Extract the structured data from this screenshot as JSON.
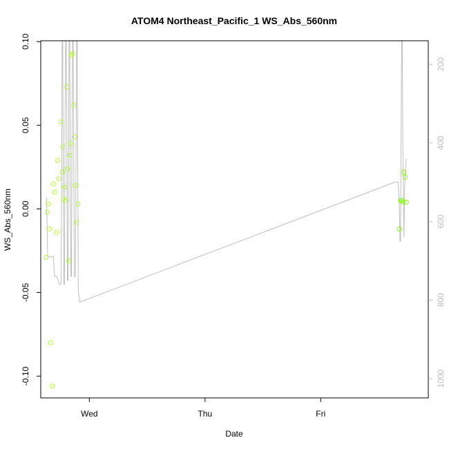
{
  "chart_data": {
    "type": "scatter",
    "title": "ATOM4 Northeast_Pacific_1 WS_Abs_560nm",
    "xlabel": "Date",
    "ylabel": "WS_Abs_560nm",
    "x_ticks": [
      {
        "label": "Wed",
        "t": 0.0
      },
      {
        "label": "Thu",
        "t": 1.0
      },
      {
        "label": "Fri",
        "t": 2.0
      }
    ],
    "xlim": [
      -0.42,
      2.93
    ],
    "ylim": [
      -0.113,
      0.1005
    ],
    "y_ticks": [
      -0.1,
      -0.05,
      0.0,
      0.05,
      0.1
    ],
    "y_tick_labels": [
      "-0.10",
      "-0.05",
      "0.00",
      "0.05",
      "0.10"
    ],
    "right_axis": {
      "ylim": [
        1049,
        140
      ],
      "reversed": true,
      "ticks": [
        200,
        400,
        600,
        800,
        1000
      ],
      "color": "#bebebe"
    },
    "series": [
      {
        "kind": "points",
        "color": "#adff2f",
        "points": [
          [
            -0.375,
            -0.029
          ],
          [
            -0.365,
            -0.002
          ],
          [
            -0.355,
            0.003
          ],
          [
            -0.345,
            -0.012
          ],
          [
            -0.335,
            -0.08
          ],
          [
            -0.32,
            -0.106
          ],
          [
            -0.31,
            0.015
          ],
          [
            -0.3,
            0.01
          ],
          [
            -0.285,
            -0.014
          ],
          [
            -0.275,
            0.029
          ],
          [
            -0.265,
            0.018
          ],
          [
            -0.245,
            0.052
          ],
          [
            -0.235,
            0.022
          ],
          [
            -0.23,
            0.037
          ],
          [
            -0.225,
            0.006
          ],
          [
            -0.215,
            0.013
          ],
          [
            -0.205,
            0.005
          ],
          [
            -0.195,
            0.073
          ],
          [
            -0.19,
            0.024
          ],
          [
            -0.18,
            -0.031
          ],
          [
            -0.17,
            0.032
          ],
          [
            -0.165,
            0.039
          ],
          [
            -0.155,
            0.092
          ],
          [
            -0.145,
            0.093
          ],
          [
            -0.135,
            0.062
          ],
          [
            -0.125,
            0.043
          ],
          [
            -0.12,
            0.014
          ],
          [
            -0.11,
            -0.008
          ],
          [
            -0.1,
            0.003
          ]
        ]
      },
      {
        "kind": "points",
        "color": "#7fff00",
        "points": [
          [
            2.68,
            -0.012
          ],
          [
            2.69,
            0.005
          ],
          [
            2.7,
            0.005
          ],
          [
            2.71,
            0.004
          ],
          [
            2.72,
            0.022
          ],
          [
            2.73,
            0.019
          ],
          [
            2.74,
            0.004
          ]
        ]
      },
      {
        "kind": "depth-line",
        "axis": "right",
        "color": "#bebebe",
        "points": [
          [
            -0.37,
            540
          ],
          [
            -0.36,
            690
          ],
          [
            -0.31,
            690
          ],
          [
            -0.3,
            740
          ],
          [
            -0.28,
            740
          ],
          [
            -0.26,
            760
          ],
          [
            -0.245,
            760
          ],
          [
            -0.24,
            520
          ],
          [
            -0.235,
            140
          ],
          [
            -0.23,
            140
          ],
          [
            -0.225,
            520
          ],
          [
            -0.22,
            760
          ],
          [
            -0.215,
            760
          ],
          [
            -0.21,
            330
          ],
          [
            -0.205,
            140
          ],
          [
            -0.2,
            140
          ],
          [
            -0.195,
            330
          ],
          [
            -0.19,
            750
          ],
          [
            -0.185,
            750
          ],
          [
            -0.18,
            450
          ],
          [
            -0.175,
            140
          ],
          [
            -0.17,
            140
          ],
          [
            -0.165,
            450
          ],
          [
            -0.16,
            740
          ],
          [
            -0.155,
            740
          ],
          [
            -0.15,
            400
          ],
          [
            -0.145,
            140
          ],
          [
            -0.14,
            140
          ],
          [
            -0.135,
            400
          ],
          [
            -0.13,
            740
          ],
          [
            -0.12,
            740
          ],
          [
            -0.115,
            450
          ],
          [
            -0.11,
            140
          ],
          [
            -0.105,
            140
          ],
          [
            -0.1,
            450
          ],
          [
            -0.095,
            780
          ],
          [
            -0.08,
            805
          ],
          [
            2.64,
            500
          ],
          [
            2.66,
            500
          ],
          [
            2.67,
            500
          ],
          [
            2.68,
            560
          ],
          [
            2.685,
            650
          ],
          [
            2.69,
            650
          ],
          [
            2.695,
            400
          ],
          [
            2.7,
            140
          ],
          [
            2.705,
            140
          ],
          [
            2.71,
            400
          ],
          [
            2.72,
            640
          ],
          [
            2.725,
            520
          ],
          [
            2.73,
            480
          ],
          [
            2.74,
            440
          ]
        ]
      }
    ]
  }
}
